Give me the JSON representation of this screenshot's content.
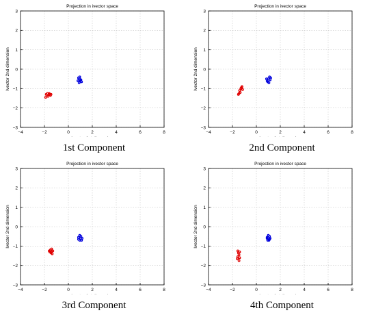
{
  "chart_data": [
    {
      "type": "scatter",
      "title": "Projection in ivector space",
      "xlabel": "Ivector 1st dimension",
      "ylabel": "Ivector 2nd dimension",
      "xlim": [
        -4,
        8
      ],
      "ylim": [
        -3,
        3
      ],
      "xticks": [
        "−4",
        "−2",
        "0",
        "2",
        "4",
        "6",
        "8"
      ],
      "yticks": [
        "−3",
        "−2",
        "−1",
        "0",
        "1",
        "2",
        "3"
      ],
      "grid": true,
      "caption": "1st Component",
      "series": [
        {
          "color": "#e00000",
          "points": [
            [
              -1.9,
              -1.45
            ],
            [
              -1.85,
              -1.3
            ],
            [
              -1.75,
              -1.25
            ],
            [
              -1.6,
              -1.3
            ],
            [
              -1.5,
              -1.35
            ],
            [
              -1.45,
              -1.3
            ],
            [
              -1.6,
              -1.25
            ],
            [
              -1.7,
              -1.4
            ]
          ]
        },
        {
          "color": "#0000dd",
          "points": [
            [
              0.85,
              -0.45
            ],
            [
              0.95,
              -0.5
            ],
            [
              1.05,
              -0.55
            ],
            [
              1.1,
              -0.65
            ],
            [
              0.9,
              -0.7
            ],
            [
              0.8,
              -0.6
            ],
            [
              1.0,
              -0.6
            ],
            [
              0.95,
              -0.4
            ]
          ]
        }
      ]
    },
    {
      "type": "scatter",
      "title": "Projection in ivector space",
      "xlabel": "Ivector 1st dimension",
      "ylabel": "Ivector 2nd dimension",
      "xlim": [
        -4,
        8
      ],
      "ylim": [
        -3,
        3
      ],
      "xticks": [
        "−4",
        "−2",
        "0",
        "2",
        "4",
        "6",
        "8"
      ],
      "yticks": [
        "−3",
        "−2",
        "−1",
        "0",
        "1",
        "2",
        "3"
      ],
      "grid": true,
      "caption": "2nd Component",
      "series": [
        {
          "color": "#e00000",
          "points": [
            [
              -1.45,
              -1.25
            ],
            [
              -1.4,
              -1.1
            ],
            [
              -1.3,
              -1.0
            ],
            [
              -1.2,
              -0.9
            ],
            [
              -1.15,
              -1.05
            ],
            [
              -1.35,
              -1.2
            ],
            [
              -1.25,
              -0.95
            ],
            [
              -1.5,
              -1.3
            ]
          ]
        },
        {
          "color": "#0000dd",
          "points": [
            [
              0.9,
              -0.6
            ],
            [
              1.0,
              -0.5
            ],
            [
              1.1,
              -0.4
            ],
            [
              1.15,
              -0.55
            ],
            [
              1.05,
              -0.7
            ],
            [
              0.95,
              -0.65
            ],
            [
              1.2,
              -0.45
            ],
            [
              0.85,
              -0.5
            ]
          ]
        }
      ]
    },
    {
      "type": "scatter",
      "title": "Projection in ivector space",
      "xlabel": "Ivector 1st dimension",
      "ylabel": "Ivector 2nd dimension",
      "xlim": [
        -4,
        8
      ],
      "ylim": [
        -3,
        3
      ],
      "xticks": [
        "−4",
        "−2",
        "0",
        "2",
        "4",
        "6",
        "8"
      ],
      "yticks": [
        "−3",
        "−2",
        "−1",
        "0",
        "1",
        "2",
        "3"
      ],
      "grid": true,
      "caption": "3rd Component",
      "series": [
        {
          "color": "#e00000",
          "points": [
            [
              -1.55,
              -1.3
            ],
            [
              -1.5,
              -1.2
            ],
            [
              -1.4,
              -1.15
            ],
            [
              -1.3,
              -1.25
            ],
            [
              -1.35,
              -1.4
            ],
            [
              -1.45,
              -1.35
            ],
            [
              -1.6,
              -1.25
            ],
            [
              -1.4,
              -1.3
            ]
          ]
        },
        {
          "color": "#0000dd",
          "points": [
            [
              0.85,
              -0.55
            ],
            [
              0.95,
              -0.45
            ],
            [
              1.05,
              -0.5
            ],
            [
              1.15,
              -0.6
            ],
            [
              1.1,
              -0.7
            ],
            [
              0.95,
              -0.7
            ],
            [
              0.85,
              -0.65
            ],
            [
              1.0,
              -0.6
            ]
          ]
        }
      ]
    },
    {
      "type": "scatter",
      "title": "Projection in ivector space",
      "xlabel": "Ivector 1st dimension",
      "ylabel": "Ivector 2nd dimension",
      "xlim": [
        -4,
        8
      ],
      "ylim": [
        -3,
        3
      ],
      "xticks": [
        "−4",
        "−2",
        "0",
        "2",
        "4",
        "6",
        "8"
      ],
      "yticks": [
        "−3",
        "−2",
        "−1",
        "0",
        "1",
        "2",
        "3"
      ],
      "grid": true,
      "caption": "4th Component",
      "series": [
        {
          "color": "#e00000",
          "points": [
            [
              -1.55,
              -1.25
            ],
            [
              -1.5,
              -1.35
            ],
            [
              -1.4,
              -1.3
            ],
            [
              -1.45,
              -1.45
            ],
            [
              -1.55,
              -1.55
            ],
            [
              -1.6,
              -1.65
            ],
            [
              -1.45,
              -1.75
            ],
            [
              -1.4,
              -1.6
            ]
          ]
        },
        {
          "color": "#0000dd",
          "points": [
            [
              0.9,
              -0.55
            ],
            [
              1.0,
              -0.45
            ],
            [
              1.1,
              -0.5
            ],
            [
              1.15,
              -0.6
            ],
            [
              1.05,
              -0.7
            ],
            [
              0.95,
              -0.7
            ],
            [
              0.9,
              -0.6
            ],
            [
              1.1,
              -0.65
            ]
          ]
        }
      ]
    }
  ]
}
